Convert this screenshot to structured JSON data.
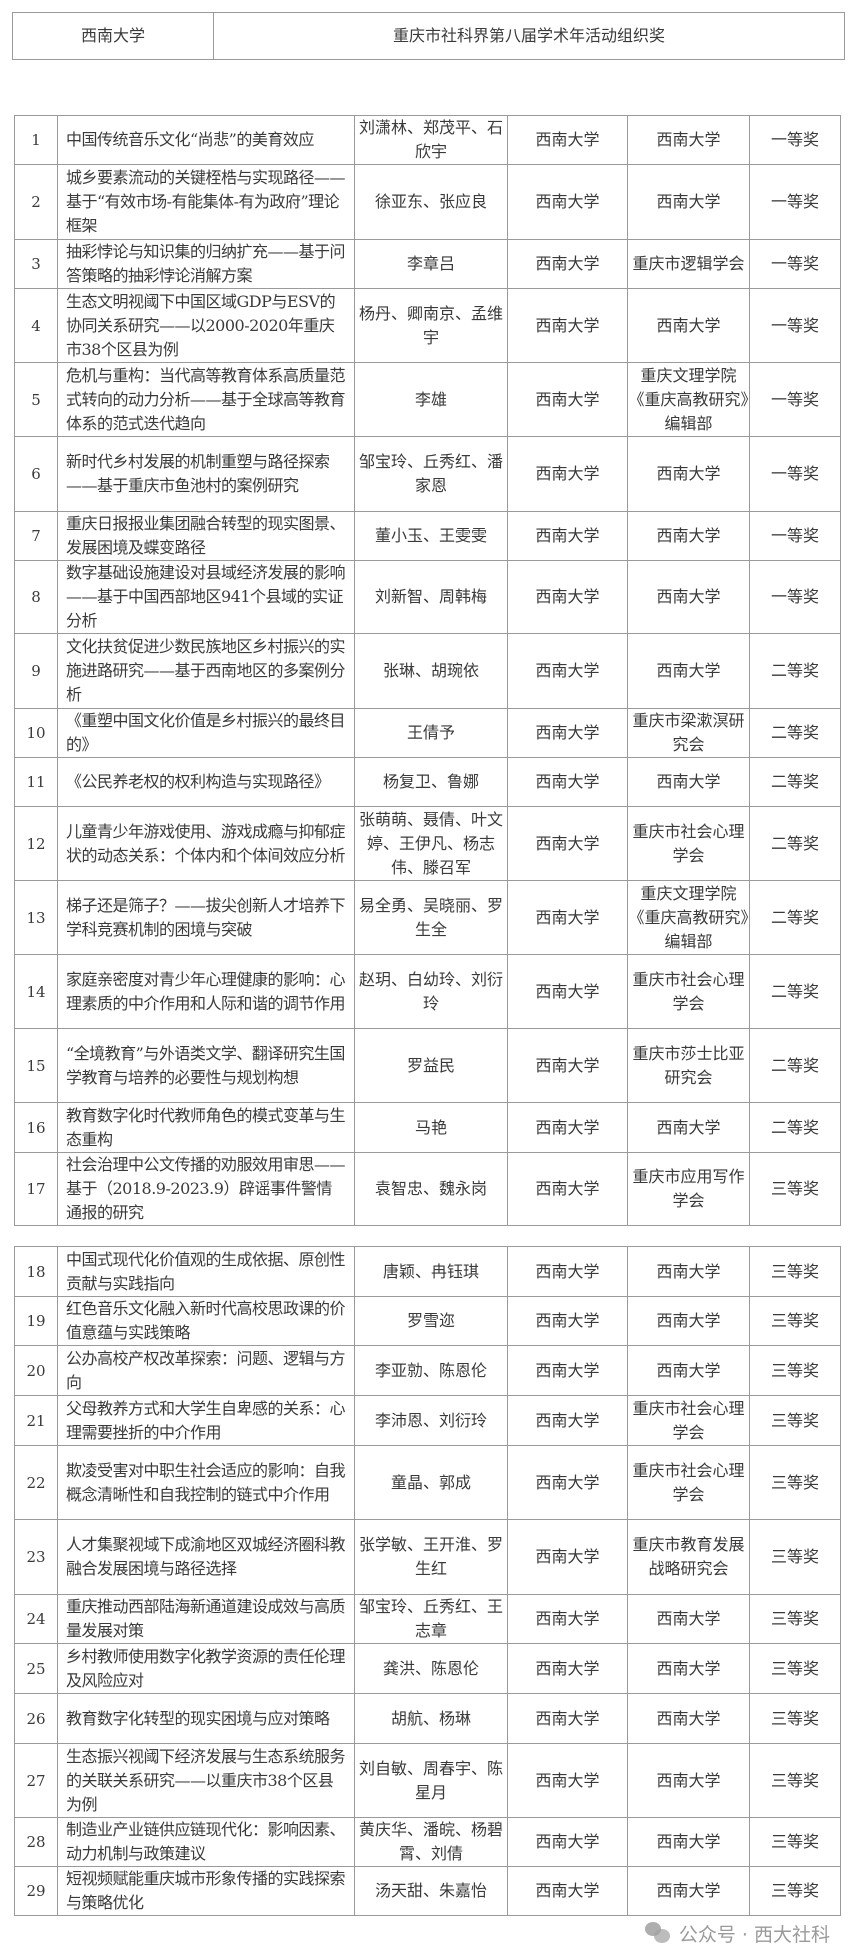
{
  "header_table": {
    "org": "西南大学",
    "award": "重庆市社科界第八届学术年活动组织奖"
  },
  "rows": [
    {
      "no": "1",
      "title": "中国传统音乐文化“尚悲”的美育效应",
      "authors": "刘潇林、郑茂平、石欣宇",
      "unit": "西南大学",
      "recommender": "西南大学",
      "award": "一等奖"
    },
    {
      "no": "2",
      "title": "城乡要素流动的关键桎梏与实现路径——基于“有效市场-有能集体-有为政府”理论框架",
      "authors": "徐亚东、张应良",
      "unit": "西南大学",
      "recommender": "西南大学",
      "award": "一等奖"
    },
    {
      "no": "3",
      "title": "抽彩悖论与知识集的归纳扩充——基于问答策略的抽彩悖论消解方案",
      "authors": "李章吕",
      "unit": "西南大学",
      "recommender": "重庆市逻辑学会",
      "award": "一等奖"
    },
    {
      "no": "4",
      "title": "生态文明视阈下中国区域GDP与ESV的协同关系研究——以2000-2020年重庆市38个区县为例",
      "authors": "杨丹、卿南京、孟维宇",
      "unit": "西南大学",
      "recommender": "西南大学",
      "award": "一等奖"
    },
    {
      "no": "5",
      "title": "危机与重构：当代高等教育体系高质量范式转向的动力分析——基于全球高等教育体系的范式迭代趋向",
      "authors": "李雄",
      "unit": "西南大学",
      "recommender": "重庆文理学院《重庆高教研究》编辑部",
      "award": "一等奖"
    },
    {
      "no": "6",
      "title": "新时代乡村发展的机制重塑与路径探索——基于重庆市鱼池村的案例研究",
      "authors": "邹宝玲、丘秀红、潘家恩",
      "unit": "西南大学",
      "recommender": "西南大学",
      "award": "一等奖"
    },
    {
      "no": "7",
      "title": "重庆日报报业集团融合转型的现实图景、发展困境及蝶变路径",
      "authors": "董小玉、王雯雯",
      "unit": "西南大学",
      "recommender": "西南大学",
      "award": "一等奖"
    },
    {
      "no": "8",
      "title": "数字基础设施建设对县域经济发展的影响——基于中国西部地区941个县域的实证分析",
      "authors": "刘新智、周韩梅",
      "unit": "西南大学",
      "recommender": "西南大学",
      "award": "一等奖"
    },
    {
      "no": "9",
      "title": "文化扶贫促进少数民族地区乡村振兴的实施进路研究——基于西南地区的多案例分析",
      "authors": "张琳、胡琬依",
      "unit": "西南大学",
      "recommender": "西南大学",
      "award": "二等奖"
    },
    {
      "no": "10",
      "title": "《重塑中国文化价值是乡村振兴的最终目的》",
      "authors": "王倩予",
      "unit": "西南大学",
      "recommender": "重庆市梁漱溟研究会",
      "award": "二等奖"
    },
    {
      "no": "11",
      "title": "《公民养老权的权利构造与实现路径》",
      "authors": "杨复卫、鲁娜",
      "unit": "西南大学",
      "recommender": "西南大学",
      "award": "二等奖"
    },
    {
      "no": "12",
      "title": "儿童青少年游戏使用、游戏成瘾与抑郁症状的动态关系：个体内和个体间效应分析",
      "authors": "张萌萌、聂倩、叶文婷、王伊凡、杨志伟、滕召军",
      "unit": "西南大学",
      "recommender": "重庆市社会心理学会",
      "award": "二等奖"
    },
    {
      "no": "13",
      "title": "梯子还是筛子？——拔尖创新人才培养下学科竞赛机制的困境与突破",
      "authors": "易全勇、吴晓丽、罗生全",
      "unit": "西南大学",
      "recommender": "重庆文理学院《重庆高教研究》编辑部",
      "award": "二等奖"
    },
    {
      "no": "14",
      "title": "家庭亲密度对青少年心理健康的影响：心理素质的中介作用和人际和谐的调节作用",
      "authors": "赵玥、白幼玲、刘衍玲",
      "unit": "西南大学",
      "recommender": "重庆市社会心理学会",
      "award": "二等奖"
    },
    {
      "no": "15",
      "title": "“全境教育”与外语类文学、翻译研究生国学教育与培养的必要性与规划构想",
      "authors": "罗益民",
      "unit": "西南大学",
      "recommender": "重庆市莎士比亚研究会",
      "award": "二等奖"
    },
    {
      "no": "16",
      "title": "教育数字化时代教师角色的模式变革与生态重构",
      "authors": "马艳",
      "unit": "西南大学",
      "recommender": "西南大学",
      "award": "二等奖"
    },
    {
      "no": "17",
      "title": "社会治理中公文传播的劝服效用审思——基于（2018.9-2023.9）辟谣事件警情通报的研究",
      "authors": "袁智忠、魏永岗",
      "unit": "西南大学",
      "recommender": "重庆市应用写作学会",
      "award": "三等奖"
    },
    {
      "no": "18",
      "title": "中国式现代化价值观的生成依据、原创性贡献与实践指向",
      "authors": "唐颖、冉钰琪",
      "unit": "西南大学",
      "recommender": "西南大学",
      "award": "三等奖"
    },
    {
      "no": "19",
      "title": "红色音乐文化融入新时代高校思政课的价值意蕴与实践策略",
      "authors": "罗雪迩",
      "unit": "西南大学",
      "recommender": "西南大学",
      "award": "三等奖"
    },
    {
      "no": "20",
      "title": "公办高校产权改革探索：问题、逻辑与方向",
      "authors": "李亚勍、陈恩伦",
      "unit": "西南大学",
      "recommender": "西南大学",
      "award": "三等奖"
    },
    {
      "no": "21",
      "title": "父母教养方式和大学生自卑感的关系：心理需要挫折的中介作用",
      "authors": "李沛恩、刘衍玲",
      "unit": "西南大学",
      "recommender": "重庆市社会心理学会",
      "award": "三等奖"
    },
    {
      "no": "22",
      "title": "欺凌受害对中职生社会适应的影响：自我概念清晰性和自我控制的链式中介作用",
      "authors": "童晶、郭成",
      "unit": "西南大学",
      "recommender": "重庆市社会心理学会",
      "award": "三等奖"
    },
    {
      "no": "23",
      "title": "人才集聚视域下成渝地区双城经济圈科教融合发展困境与路径选择",
      "authors": "张学敏、王开淮、罗生红",
      "unit": "西南大学",
      "recommender": "重庆市教育发展战略研究会",
      "award": "三等奖"
    },
    {
      "no": "24",
      "title": "重庆推动西部陆海新通道建设成效与高质量发展对策",
      "authors": "邹宝玲、丘秀红、王志章",
      "unit": "西南大学",
      "recommender": "西南大学",
      "award": "三等奖"
    },
    {
      "no": "25",
      "title": "乡村教师使用数字化教学资源的责任伦理及风险应对",
      "authors": "龚洪、陈恩伦",
      "unit": "西南大学",
      "recommender": "西南大学",
      "award": "三等奖"
    },
    {
      "no": "26",
      "title": "教育数字化转型的现实困境与应对策略",
      "authors": "胡航、杨琳",
      "unit": "西南大学",
      "recommender": "西南大学",
      "award": "三等奖"
    },
    {
      "no": "27",
      "title": "生态振兴视阈下经济发展与生态系统服务的关联关系研究——以重庆市38个区县为例",
      "authors": "刘自敏、周春宇、陈星月",
      "unit": "西南大学",
      "recommender": "西南大学",
      "award": "三等奖"
    },
    {
      "no": "28",
      "title": "制造业产业链供应链现代化：影响因素、动力机制与政策建议",
      "authors": "黄庆华、潘皖、杨碧霄、刘倩",
      "unit": "西南大学",
      "recommender": "西南大学",
      "award": "三等奖"
    },
    {
      "no": "29",
      "title": "短视频赋能重庆城市形象传播的实践探索与策略优化",
      "authors": "汤天甜、朱嘉怡",
      "unit": "西南大学",
      "recommender": "西南大学",
      "award": "三等奖"
    }
  ],
  "watermark": {
    "icon": "wechat-icon",
    "text": "公众号 · 西大社科"
  }
}
